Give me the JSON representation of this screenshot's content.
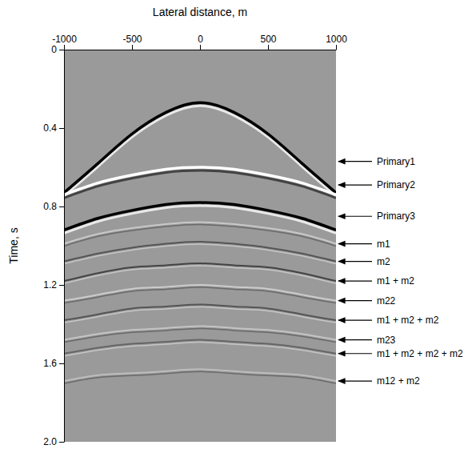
{
  "chart_data": {
    "type": "line",
    "x_label": "Lateral distance, m",
    "y_label": "Time, s",
    "x": [
      -1000,
      -750,
      -500,
      -250,
      0,
      250,
      500,
      750,
      1000
    ],
    "xlim": [
      -1000,
      1000
    ],
    "xticks": [
      -1000,
      -500,
      0,
      500,
      1000
    ],
    "ylim": [
      0,
      2
    ],
    "yticks": [
      0,
      0.4,
      0.8,
      1.2,
      1.6,
      {
        "value": 2,
        "label": "2.0"
      }
    ],
    "series": [
      {
        "color": "#000000",
        "values": [
          0.73,
          0.58,
          0.43,
          0.32,
          0.27,
          0.32,
          0.43,
          0.58,
          0.73
        ]
      },
      {
        "color": "#ffffff",
        "values": [
          0.74,
          0.68,
          0.64,
          0.61,
          0.6,
          0.61,
          0.64,
          0.68,
          0.74
        ]
      },
      {
        "color": "#000000",
        "values": [
          0.92,
          0.86,
          0.82,
          0.79,
          0.78,
          0.79,
          0.82,
          0.86,
          0.92
        ]
      },
      {
        "color": "#c8c8c8",
        "values": [
          0.99,
          0.94,
          0.91,
          0.89,
          0.88,
          0.89,
          0.91,
          0.94,
          0.99
        ]
      },
      {
        "color": "#555555",
        "values": [
          1.08,
          1.04,
          1.01,
          0.99,
          0.98,
          0.99,
          1.01,
          1.04,
          1.08
        ]
      },
      {
        "color": "#444444",
        "values": [
          1.18,
          1.14,
          1.11,
          1.1,
          1.09,
          1.1,
          1.11,
          1.14,
          1.18
        ]
      },
      {
        "color": "#cccccc",
        "values": [
          1.28,
          1.25,
          1.22,
          1.21,
          1.2,
          1.21,
          1.22,
          1.25,
          1.28
        ]
      },
      {
        "color": "#555555",
        "values": [
          1.38,
          1.35,
          1.32,
          1.31,
          1.3,
          1.31,
          1.32,
          1.35,
          1.38
        ]
      },
      {
        "color": "#c4c4c4",
        "values": [
          1.48,
          1.45,
          1.43,
          1.42,
          1.41,
          1.42,
          1.43,
          1.45,
          1.48
        ]
      },
      {
        "color": "#666666",
        "values": [
          1.55,
          1.52,
          1.5,
          1.49,
          1.48,
          1.49,
          1.5,
          1.52,
          1.55
        ]
      },
      {
        "color": "#bdbdbd",
        "values": [
          1.69,
          1.66,
          1.65,
          1.64,
          1.63,
          1.64,
          1.65,
          1.66,
          1.69
        ]
      }
    ],
    "annotations": [
      {
        "text": "Primary1",
        "y": 0.57
      },
      {
        "text": "Primary2",
        "y": 0.69
      },
      {
        "text": "Primary3",
        "y": 0.85
      },
      {
        "text": "m1",
        "y": 0.99
      },
      {
        "text": "m2",
        "y": 1.08
      },
      {
        "text": "m1 + m2",
        "y": 1.18
      },
      {
        "text": "m22",
        "y": 1.28
      },
      {
        "text": "m1 + m2 + m2",
        "y": 1.38
      },
      {
        "text": "m23",
        "y": 1.48
      },
      {
        "text": "m1 + m2 + m2 + m2",
        "y": 1.55
      },
      {
        "text": "m12 + m2",
        "y": 1.69
      }
    ]
  }
}
